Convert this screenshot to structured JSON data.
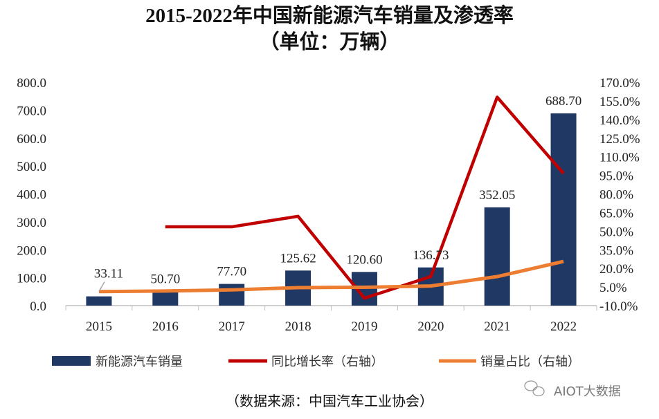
{
  "chart_data": {
    "type": "bar+line",
    "title": "2015-2022年中国新能源汽车销量及渗透率",
    "subtitle": "（单位：万辆）",
    "categories": [
      "2015",
      "2016",
      "2017",
      "2018",
      "2019",
      "2020",
      "2021",
      "2022"
    ],
    "left_axis": {
      "min": 0,
      "max": 800,
      "step": 100,
      "ticks": [
        "0.0",
        "100.0",
        "200.0",
        "300.0",
        "400.0",
        "500.0",
        "600.0",
        "700.0",
        "800.0"
      ]
    },
    "right_axis": {
      "min": -10,
      "max": 170,
      "step": 15,
      "ticks": [
        "-10.0%",
        "5.0%",
        "20.0%",
        "35.0%",
        "50.0%",
        "65.0%",
        "80.0%",
        "95.0%",
        "110.0%",
        "125.0%",
        "140.0%",
        "155.0%",
        "170.0%"
      ]
    },
    "series": [
      {
        "name": "新能源汽车销量",
        "type": "bar",
        "axis": "left",
        "color": "#1f3864",
        "values": [
          33.11,
          50.7,
          77.7,
          125.62,
          120.6,
          136.73,
          352.05,
          688.7
        ],
        "labels": [
          "33.11",
          "50.70",
          "77.70",
          "125.62",
          "120.60",
          "136.73",
          "352.05",
          "688.70"
        ]
      },
      {
        "name": "同比增长率（右轴）",
        "type": "line",
        "axis": "right",
        "color": "#c00000",
        "values": [
          null,
          53.5,
          53.5,
          62,
          -4,
          13.4,
          158,
          96.5
        ]
      },
      {
        "name": "销量占比（右轴）",
        "type": "line",
        "axis": "right",
        "color": "#ed7d31",
        "values": [
          1.3,
          1.8,
          2.7,
          4.5,
          4.8,
          5.8,
          13.4,
          25.6
        ]
      }
    ],
    "legend_position": "bottom",
    "grid": false
  },
  "source": "（数据来源：中国汽车工业协会）",
  "watermark": "AIOT大数据"
}
